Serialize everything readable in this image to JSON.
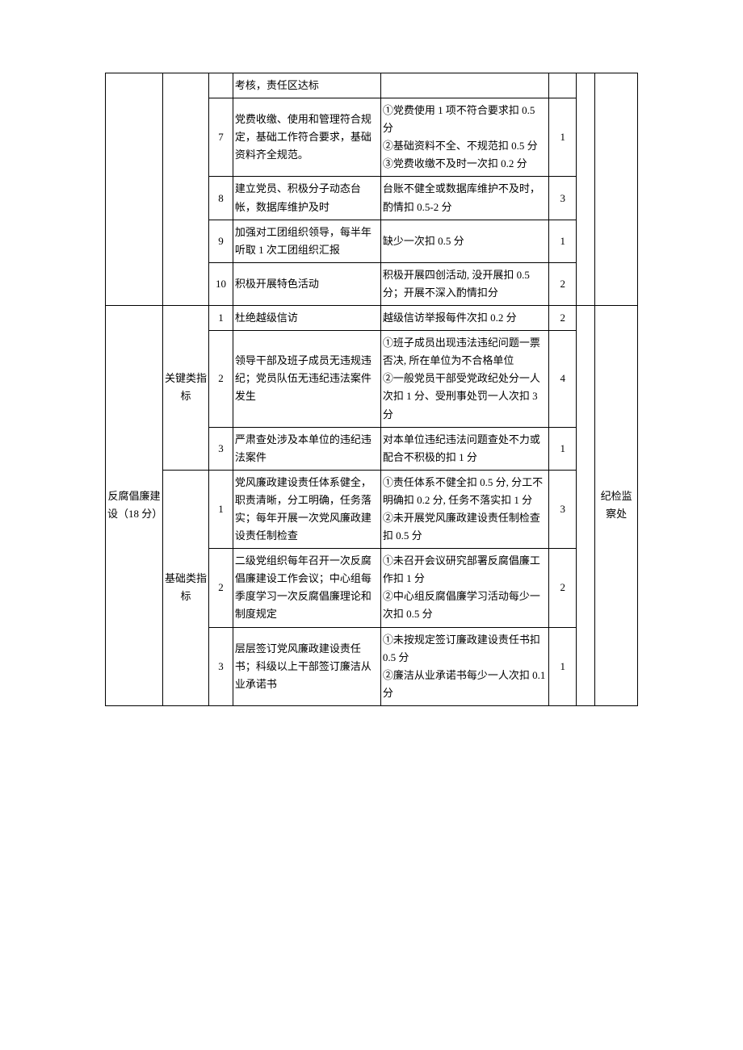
{
  "section1": {
    "rows": [
      {
        "idx": "",
        "req": "考核，责任区达标",
        "std": "",
        "score": ""
      },
      {
        "idx": "7",
        "req": "党费收缴、使用和管理符合规定，基础工作符合要求，基础资料齐全规范。",
        "std": "①党费使用 1 项不符合要求扣 0.5 分\n②基础资料不全、不规范扣 0.5 分\n③党费收缴不及时一次扣 0.2 分",
        "score": "1"
      },
      {
        "idx": "8",
        "req": "建立党员、积极分子动态台帐，数据库维护及时",
        "std": "台账不健全或数据库维护不及时，酌情扣 0.5-2 分",
        "score": "3"
      },
      {
        "idx": "9",
        "req": "加强对工团组织领导，每半年听取 1 次工团组织汇报",
        "std": "缺少一次扣 0.5 分",
        "score": "1"
      },
      {
        "idx": "10",
        "req": "积极开展特色活动",
        "std": "积极开展四创活动, 没开展扣 0.5 分；开展不深入酌情扣分",
        "score": "2"
      }
    ]
  },
  "section2": {
    "label": "反腐倡廉建设（18 分）",
    "dept": "纪检监察处",
    "groupA": {
      "label": "关键类指标",
      "rows": [
        {
          "idx": "1",
          "req": "杜绝越级信访",
          "std": "越级信访举报每件次扣 0.2 分",
          "score": "2"
        },
        {
          "idx": "2",
          "req": "领导干部及班子成员无违规违纪；党员队伍无违纪违法案件发生",
          "std": "①班子成员出现违法违纪问题一票否决, 所在单位为不合格单位\n②一般党员干部受党政纪处分一人次扣 1 分、受刑事处罚一人次扣 3 分",
          "score": "4"
        },
        {
          "idx": "3",
          "req": "严肃查处涉及本单位的违纪违法案件",
          "std": "对本单位违纪违法问题查处不力或配合不积极的扣 1 分",
          "score": "1"
        }
      ]
    },
    "groupB": {
      "label": "基础类指标",
      "rows": [
        {
          "idx": "1",
          "req": "党风廉政建设责任体系健全，职责清晰，分工明确，任务落实；每年开展一次党风廉政建设责任制检查",
          "std": "①责任体系不健全扣 0.5 分, 分工不明确扣 0.2 分, 任务不落实扣 1 分\n②未开展党风廉政建设责任制检查扣 0.5 分",
          "score": "3"
        },
        {
          "idx": "2",
          "req": "二级党组织每年召开一次反腐倡廉建设工作会议；中心组每季度学习一次反腐倡廉理论和制度规定",
          "std": "①未召开会议研究部署反腐倡廉工作扣 1 分\n②中心组反腐倡廉学习活动每少一次扣 0.5 分",
          "score": "2"
        },
        {
          "idx": "3",
          "req": "层层签订党风廉政建设责任书；科级以上干部签订廉洁从业承诺书",
          "std": "①未按规定签订廉政建设责任书扣 0.5 分\n②廉洁从业承诺书每少一人次扣 0.1 分",
          "score": "1"
        }
      ]
    }
  }
}
